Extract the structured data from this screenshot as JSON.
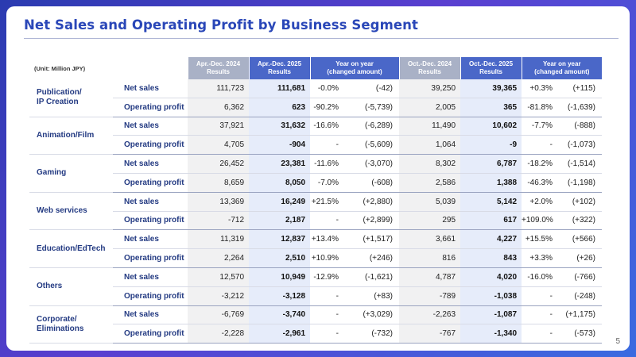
{
  "title": "Net Sales and Operating Profit by Business Segment",
  "page_number": "5",
  "unit": "(Unit: Million JPY)",
  "headers": {
    "col_apr_2024": [
      "Apr.-Dec. 2024",
      "Results"
    ],
    "col_apr_2025": [
      "Apr.-Dec. 2025",
      "Results"
    ],
    "col_yoy1": [
      "Year on year",
      "(changed amount)"
    ],
    "col_oct_2024": [
      "Oct.-Dec. 2024",
      "Results"
    ],
    "col_oct_2025": [
      "Oct.-Dec. 2025",
      "Results"
    ],
    "col_yoy2": [
      "Year on year",
      "(changed amount)"
    ]
  },
  "segments": [
    {
      "name": "Publication/\nIP Creation",
      "rows": [
        {
          "metric": "Net sales",
          "v": [
            "111,723",
            "111,681",
            "-0.0%",
            "(-42)",
            "39,250",
            "39,365",
            "+0.3%",
            "(+115)"
          ]
        },
        {
          "metric": "Operating profit",
          "v": [
            "6,362",
            "623",
            "-90.2%",
            "(-5,739)",
            "2,005",
            "365",
            "-81.8%",
            "(-1,639)"
          ]
        }
      ]
    },
    {
      "name": "Animation/Film",
      "rows": [
        {
          "metric": "Net sales",
          "v": [
            "37,921",
            "31,632",
            "-16.6%",
            "(-6,289)",
            "11,490",
            "10,602",
            "-7.7%",
            "(-888)"
          ]
        },
        {
          "metric": "Operating profit",
          "v": [
            "4,705",
            "-904",
            "-",
            "(-5,609)",
            "1,064",
            "-9",
            "-",
            "(-1,073)"
          ]
        }
      ]
    },
    {
      "name": "Gaming",
      "rows": [
        {
          "metric": "Net sales",
          "v": [
            "26,452",
            "23,381",
            "-11.6%",
            "(-3,070)",
            "8,302",
            "6,787",
            "-18.2%",
            "(-1,514)"
          ]
        },
        {
          "metric": "Operating profit",
          "v": [
            "8,659",
            "8,050",
            "-7.0%",
            "(-608)",
            "2,586",
            "1,388",
            "-46.3%",
            "(-1,198)"
          ]
        }
      ]
    },
    {
      "name": "Web services",
      "rows": [
        {
          "metric": "Net sales",
          "v": [
            "13,369",
            "16,249",
            "+21.5%",
            "(+2,880)",
            "5,039",
            "5,142",
            "+2.0%",
            "(+102)"
          ]
        },
        {
          "metric": "Operating profit",
          "v": [
            "-712",
            "2,187",
            "-",
            "(+2,899)",
            "295",
            "617",
            "+109.0%",
            "(+322)"
          ]
        }
      ]
    },
    {
      "name": "Education/EdTech",
      "rows": [
        {
          "metric": "Net sales",
          "v": [
            "11,319",
            "12,837",
            "+13.4%",
            "(+1,517)",
            "3,661",
            "4,227",
            "+15.5%",
            "(+566)"
          ]
        },
        {
          "metric": "Operating profit",
          "v": [
            "2,264",
            "2,510",
            "+10.9%",
            "(+246)",
            "816",
            "843",
            "+3.3%",
            "(+26)"
          ]
        }
      ]
    },
    {
      "name": "Others",
      "rows": [
        {
          "metric": "Net sales",
          "v": [
            "12,570",
            "10,949",
            "-12.9%",
            "(-1,621)",
            "4,787",
            "4,020",
            "-16.0%",
            "(-766)"
          ]
        },
        {
          "metric": "Operating profit",
          "v": [
            "-3,212",
            "-3,128",
            "-",
            "(+83)",
            "-789",
            "-1,038",
            "-",
            "(-248)"
          ]
        }
      ]
    },
    {
      "name": "Corporate/\nEliminations",
      "rows": [
        {
          "metric": "Net sales",
          "v": [
            "-6,769",
            "-3,740",
            "-",
            "(+3,029)",
            "-2,263",
            "-1,087",
            "-",
            "(+1,175)"
          ]
        },
        {
          "metric": "Operating profit",
          "v": [
            "-2,228",
            "-2,961",
            "-",
            "(-732)",
            "-767",
            "-1,340",
            "-",
            "(-573)"
          ]
        }
      ]
    }
  ]
}
